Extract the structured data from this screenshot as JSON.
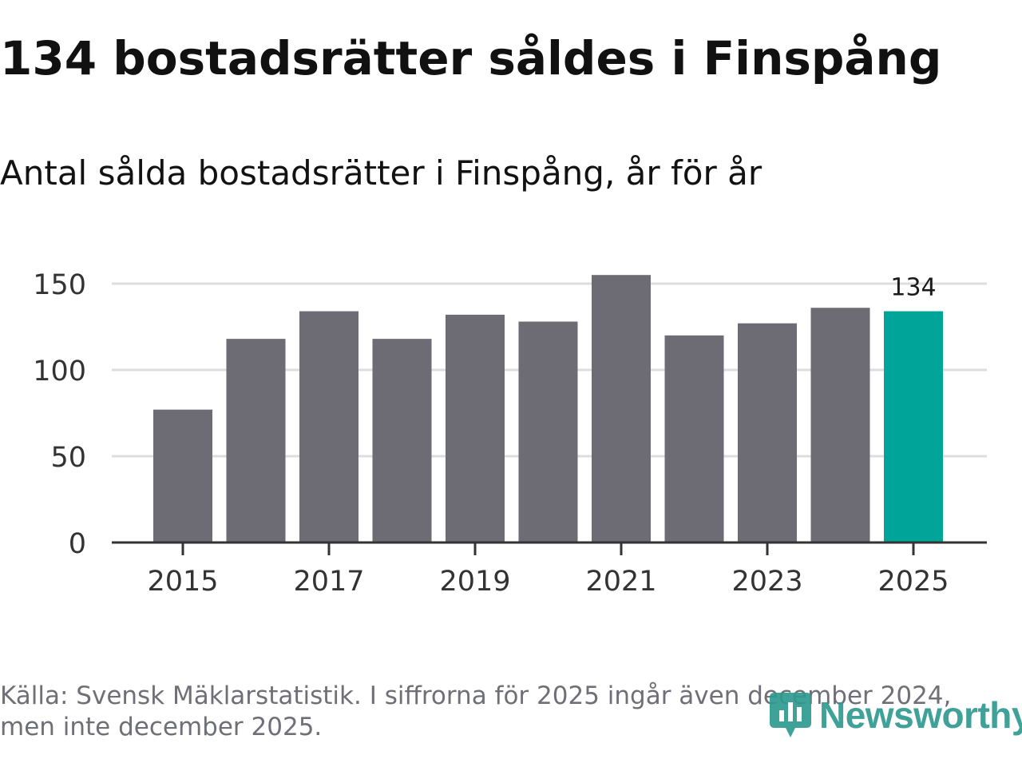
{
  "header": {
    "title": "134 bostadsrätter såldes i Finspång",
    "subtitle": "Antal sålda bostadsrätter i Finspång, år för år"
  },
  "chart_data": {
    "type": "bar",
    "title": "134 bostadsrätter såldes i Finspång",
    "subtitle": "Antal sålda bostadsrätter i Finspång, år för år",
    "categories": [
      "2015",
      "2016",
      "2017",
      "2018",
      "2019",
      "2020",
      "2021",
      "2022",
      "2023",
      "2024",
      "2025"
    ],
    "values": [
      77,
      118,
      134,
      118,
      132,
      128,
      155,
      120,
      127,
      136,
      134
    ],
    "highlight_index": 10,
    "highlight_label": "134",
    "x_tick_labels": [
      "2015",
      "2017",
      "2019",
      "2021",
      "2023",
      "2025"
    ],
    "y_ticks": [
      "0",
      "50",
      "100",
      "150"
    ],
    "ylim": [
      0,
      150
    ],
    "xlabel": "",
    "ylabel": "",
    "grid": true,
    "colors": {
      "bar": "#6d6c74",
      "highlight": "#00a498",
      "grid": "#dddddd",
      "axis": "#333333",
      "tick_text": "#333333"
    }
  },
  "footer": {
    "source": "Källa: Svensk Mäklarstatistik. I siffrorna för 2025 ingår även december 2024, men inte december 2025."
  },
  "logo": {
    "name": "Newsworthy",
    "icon": "newsworthy-logo-icon",
    "color": "#2f9a8f"
  }
}
